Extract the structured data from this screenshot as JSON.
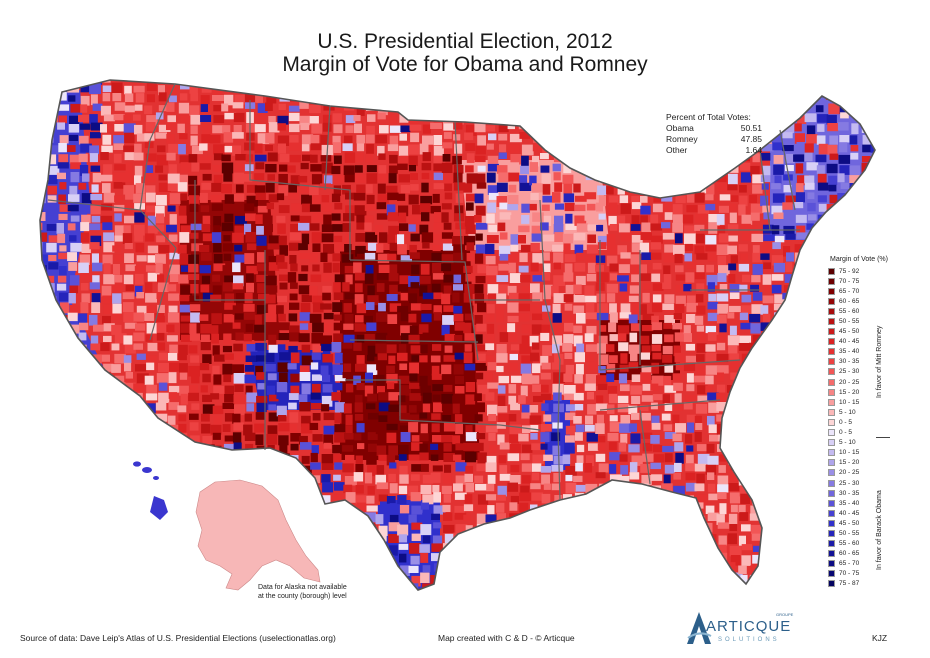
{
  "title_line1": "U.S. Presidential Election, 2012",
  "title_line2": "Margin of Vote for Obama and Romney",
  "votes": {
    "heading": "Percent of Total Votes:",
    "rows": [
      {
        "name": "Obama",
        "value": "50.51"
      },
      {
        "name": "Romney",
        "value": "47.85"
      },
      {
        "name": "Other",
        "value": "1.64"
      }
    ]
  },
  "legend": {
    "title": "Margin of Vote (%)",
    "romney_label": "In favor of Mitt Romney",
    "obama_label": "In favor of Barack Obama",
    "romney_items": [
      {
        "label": "75 - 92",
        "color": "#5c0000"
      },
      {
        "label": "70 - 75",
        "color": "#6e0000"
      },
      {
        "label": "65 - 70",
        "color": "#800000"
      },
      {
        "label": "60 - 65",
        "color": "#940606"
      },
      {
        "label": "55 - 60",
        "color": "#a80c0c"
      },
      {
        "label": "50 - 55",
        "color": "#bb1212"
      },
      {
        "label": "45 - 50",
        "color": "#cc1a1a"
      },
      {
        "label": "40 - 45",
        "color": "#db2222"
      },
      {
        "label": "35 - 40",
        "color": "#e63030"
      },
      {
        "label": "30 - 35",
        "color": "#ed4242"
      },
      {
        "label": "25 - 30",
        "color": "#f25656"
      },
      {
        "label": "20 - 25",
        "color": "#f56c6c"
      },
      {
        "label": "15 - 20",
        "color": "#f78585"
      },
      {
        "label": "10 - 15",
        "color": "#f99e9e"
      },
      {
        "label": "5 - 10",
        "color": "#fbb8b8"
      },
      {
        "label": "0 - 5",
        "color": "#fdd6d6"
      }
    ],
    "obama_items": [
      {
        "label": "0 - 5",
        "color": "#ece6fb"
      },
      {
        "label": "5 - 10",
        "color": "#d8d0f6"
      },
      {
        "label": "10 - 15",
        "color": "#c4baf1"
      },
      {
        "label": "15 - 20",
        "color": "#afa5ec"
      },
      {
        "label": "20 - 25",
        "color": "#9a8fe7"
      },
      {
        "label": "25 - 30",
        "color": "#857ae2"
      },
      {
        "label": "30 - 35",
        "color": "#7066dd"
      },
      {
        "label": "35 - 40",
        "color": "#5a52d8"
      },
      {
        "label": "40 - 45",
        "color": "#4540d2"
      },
      {
        "label": "45 - 50",
        "color": "#3030cc"
      },
      {
        "label": "50 - 55",
        "color": "#2424bb"
      },
      {
        "label": "55 - 60",
        "color": "#1a1aa8"
      },
      {
        "label": "60 - 65",
        "color": "#121296"
      },
      {
        "label": "65 - 70",
        "color": "#0c0c84"
      },
      {
        "label": "70 - 75",
        "color": "#070772"
      },
      {
        "label": "75 - 87",
        "color": "#030360"
      }
    ]
  },
  "alaska_note_line1": "Data for Alaska not available",
  "alaska_note_line2": "at the county (borough) level",
  "source": "Source of data: Dave Leip's Atlas of U.S. Presidential Elections (uselectionatlas.org)",
  "credit": "Map created with C & D - © Articque",
  "logo": {
    "word": "ARTICQUE",
    "sub": "SOLUTIONS",
    "group": "GROUPE"
  },
  "initials": "KJZ"
}
